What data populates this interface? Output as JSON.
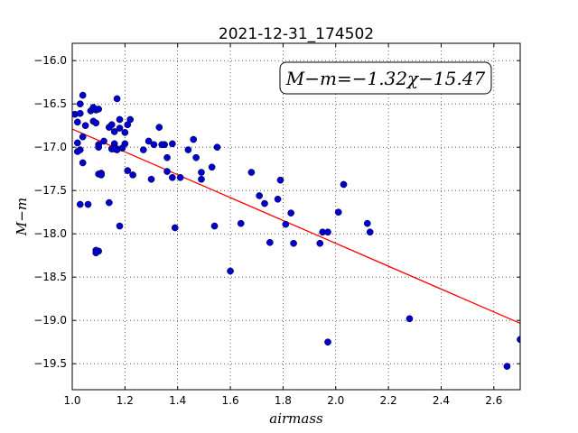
{
  "chart_data": {
    "type": "scatter",
    "title": "2021-12-31_174502",
    "xlabel": "airmass",
    "ylabel": "M−m",
    "xlim": [
      1.0,
      2.7
    ],
    "ylim": [
      -15.8,
      -19.8
    ],
    "y_inverted": true,
    "grid": true,
    "x_ticks": [
      1.0,
      1.2,
      1.4,
      1.6,
      1.8,
      2.0,
      2.2,
      2.4,
      2.6
    ],
    "x_tick_labels": [
      "1.0",
      "1.2",
      "1.4",
      "1.6",
      "1.8",
      "2.0",
      "2.2",
      "2.4",
      "2.6"
    ],
    "y_ticks": [
      -16.0,
      -16.5,
      -17.0,
      -17.5,
      -18.0,
      -18.5,
      -19.0,
      -19.5
    ],
    "y_tick_labels": [
      "−16.0",
      "−16.5",
      "−17.0",
      "−17.5",
      "−18.0",
      "−18.5",
      "−19.0",
      "−19.5"
    ],
    "annotation": "M−m=−1.32χ−15.47",
    "annotation_position": "top-right",
    "colors": {
      "points": "#0000cc",
      "fit": "#ff0000"
    },
    "series": [
      {
        "kind": "points",
        "x": [
          1.01,
          1.02,
          1.03,
          1.04,
          1.05,
          1.03,
          1.04,
          1.02,
          1.03,
          1.04,
          1.06,
          1.02,
          1.03,
          1.07,
          1.08,
          1.09,
          1.1,
          1.08,
          1.09,
          1.1,
          1.12,
          1.1,
          1.11,
          1.1,
          1.11,
          1.1,
          1.09,
          1.09,
          1.14,
          1.15,
          1.16,
          1.17,
          1.18,
          1.16,
          1.17,
          1.15,
          1.17,
          1.16,
          1.18,
          1.14,
          1.18,
          1.2,
          1.21,
          1.22,
          1.2,
          1.19,
          1.21,
          1.23,
          1.27,
          1.29,
          1.31,
          1.33,
          1.35,
          1.34,
          1.3,
          1.36,
          1.38,
          1.36,
          1.38,
          1.39,
          1.41,
          1.44,
          1.46,
          1.47,
          1.49,
          1.49,
          1.53,
          1.55,
          1.54,
          1.6,
          1.64,
          1.68,
          1.71,
          1.73,
          1.75,
          1.78,
          1.79,
          1.81,
          1.83,
          1.84,
          1.94,
          1.95,
          1.97,
          1.97,
          2.01,
          2.03,
          2.12,
          2.13,
          2.28,
          2.65,
          2.7
        ],
        "y": [
          -16.62,
          -16.71,
          -16.61,
          -16.4,
          -16.75,
          -16.5,
          -16.88,
          -16.95,
          -17.03,
          -17.18,
          -17.66,
          -17.05,
          -17.66,
          -16.58,
          -16.54,
          -16.57,
          -16.56,
          -16.7,
          -16.72,
          -16.97,
          -16.93,
          -17.0,
          -17.3,
          -17.31,
          -17.32,
          -18.2,
          -18.19,
          -18.22,
          -16.77,
          -16.74,
          -16.82,
          -16.44,
          -16.68,
          -16.96,
          -17.02,
          -17.02,
          -17.03,
          -17.02,
          -16.78,
          -17.64,
          -17.91,
          -16.83,
          -16.74,
          -16.68,
          -16.96,
          -17.01,
          -17.27,
          -17.32,
          -17.03,
          -16.93,
          -16.97,
          -16.77,
          -16.97,
          -16.97,
          -17.37,
          -17.12,
          -16.96,
          -17.28,
          -17.35,
          -17.93,
          -17.35,
          -17.03,
          -16.91,
          -17.12,
          -17.29,
          -17.37,
          -17.23,
          -17.0,
          -17.91,
          -18.43,
          -17.88,
          -17.29,
          -17.56,
          -17.65,
          -18.1,
          -17.6,
          -17.38,
          -17.89,
          -17.76,
          -18.11,
          -18.11,
          -17.98,
          -17.98,
          -19.25,
          -17.75,
          -17.43,
          -17.88,
          -17.98,
          -18.98,
          -19.53,
          -19.22
        ]
      },
      {
        "kind": "fit-line",
        "x": [
          1.0,
          2.7
        ],
        "y": [
          -16.79,
          -19.034
        ]
      }
    ]
  }
}
